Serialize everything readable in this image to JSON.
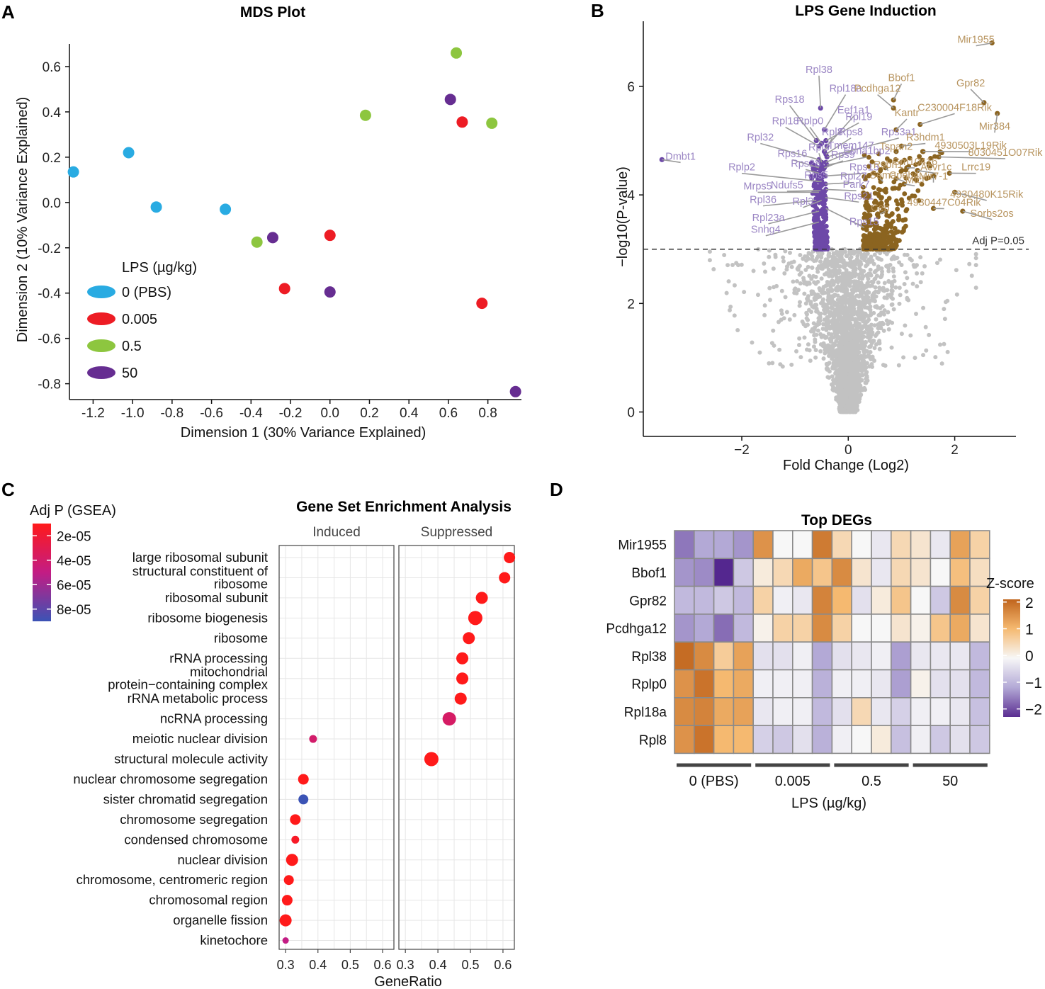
{
  "figure": {
    "panel_letters": [
      "A",
      "B",
      "C",
      "D"
    ],
    "colors": {
      "pbs": "#29abe2",
      "d0005": "#ed1c24",
      "d05": "#8dc63f",
      "d50": "#662d91",
      "purple": "#6d48a8",
      "gold": "#8b6420",
      "grey": "#c2c2c2"
    }
  },
  "chart_data": [
    {
      "id": "mds",
      "type": "scatter",
      "title": "MDS Plot",
      "xlabel": "Dimension 1 (30% Variance Explained)",
      "ylabel": "Dimension 2 (10% Variance Explained)",
      "xlim": [
        -1.32,
        0.97
      ],
      "ylim": [
        -0.87,
        0.7
      ],
      "xticks": [
        "-1.2",
        "-1.0",
        "-0.8",
        "-0.6",
        "-0.4",
        "-0.2",
        "0.0",
        "0.2",
        "0.4",
        "0.6",
        "0.8"
      ],
      "xtick_values": [
        -1.2,
        -1.0,
        -0.8,
        -0.6,
        -0.4,
        -0.2,
        0.0,
        0.2,
        0.4,
        0.6,
        0.8
      ],
      "yticks": [
        "0.6",
        "0.4",
        "0.2",
        "0.0",
        "-0.2",
        "-0.4",
        "-0.6",
        "-0.8"
      ],
      "ytick_values": [
        0.6,
        0.4,
        0.2,
        0.0,
        -0.2,
        -0.4,
        -0.6,
        -0.8
      ],
      "legend_title": "LPS (µg/kg)",
      "series": [
        {
          "name": "0 (PBS)",
          "color": "#29abe2",
          "points": [
            [
              -1.3,
              0.135
            ],
            [
              -1.02,
              0.22
            ],
            [
              -0.88,
              -0.02
            ],
            [
              -0.53,
              -0.03
            ]
          ]
        },
        {
          "name": "0.005",
          "color": "#ed1c24",
          "points": [
            [
              0.67,
              0.355
            ],
            [
              0.0,
              -0.145
            ],
            [
              -0.23,
              -0.38
            ],
            [
              0.77,
              -0.445
            ]
          ]
        },
        {
          "name": "0.5",
          "color": "#8dc63f",
          "points": [
            [
              0.64,
              0.66
            ],
            [
              0.18,
              0.385
            ],
            [
              0.82,
              0.35
            ],
            [
              -0.37,
              -0.175
            ]
          ]
        },
        {
          "name": "50",
          "color": "#662d91",
          "points": [
            [
              0.61,
              0.455
            ],
            [
              -0.29,
              -0.155
            ],
            [
              0.0,
              -0.395
            ],
            [
              0.94,
              -0.835
            ]
          ]
        }
      ]
    },
    {
      "id": "volcano",
      "type": "scatter",
      "title": "LPS Gene Induction",
      "xlabel": "Fold Change (Log2)",
      "ylabel": "−log10(P-value)",
      "xlim": [
        -3.85,
        3.15
      ],
      "ylim": [
        -0.45,
        7.2
      ],
      "xticks": [
        "−2",
        "0",
        "2"
      ],
      "xtick_values": [
        -2,
        0,
        2
      ],
      "yticks": [
        "0",
        "2",
        "4",
        "6"
      ],
      "ytick_values": [
        0,
        2,
        4,
        6
      ],
      "threshold": 3.0,
      "threshold_label": "Adj P=0.05",
      "suppressed_labels": [
        {
          "gene": "Rpl38",
          "x": -0.52,
          "y": 5.6,
          "tx": -0.55,
          "ty": 6.25
        },
        {
          "gene": "Rpl18a",
          "x": -0.45,
          "y": 5.2,
          "tx": -0.05,
          "ty": 5.9
        },
        {
          "gene": "Rps18",
          "x": -0.6,
          "y": 5.0,
          "tx": -1.1,
          "ty": 5.7
        },
        {
          "gene": "Eef1a1",
          "x": -0.4,
          "y": 4.9,
          "tx": 0.1,
          "ty": 5.5
        },
        {
          "gene": "Rpl18",
          "x": -0.55,
          "y": 4.9,
          "tx": -1.18,
          "ty": 5.3
        },
        {
          "gene": "Rplp0",
          "x": -0.5,
          "y": 4.95,
          "tx": -0.72,
          "ty": 5.3
        },
        {
          "gene": "Rpl19",
          "x": -0.42,
          "y": 5.0,
          "tx": 0.2,
          "ty": 5.38
        },
        {
          "gene": "Rpl8",
          "x": -0.45,
          "y": 4.8,
          "tx": -0.3,
          "ty": 5.1
        },
        {
          "gene": "Rps8",
          "x": -0.42,
          "y": 4.75,
          "tx": 0.05,
          "ty": 5.1
        },
        {
          "gene": "Rps3a1",
          "x": -0.4,
          "y": 4.7,
          "tx": 0.95,
          "ty": 5.1
        },
        {
          "gene": "Rpl32",
          "x": -0.55,
          "y": 4.65,
          "tx": -1.65,
          "ty": 5.0
        },
        {
          "gene": "Tmem147",
          "x": -0.42,
          "y": 4.6,
          "tx": 0.05,
          "ty": 4.85
        },
        {
          "gene": "Ebna1bp2",
          "x": -0.4,
          "y": 4.55,
          "tx": 0.35,
          "ty": 4.75
        },
        {
          "gene": "Rpl3",
          "x": -0.5,
          "y": 4.6,
          "tx": -0.55,
          "ty": 4.82
        },
        {
          "gene": "Rps16",
          "x": -0.55,
          "y": 4.5,
          "tx": -1.05,
          "ty": 4.7
        },
        {
          "gene": "Rps9",
          "x": -0.45,
          "y": 4.5,
          "tx": -0.1,
          "ty": 4.68
        },
        {
          "gene": "Rps28",
          "x": -0.55,
          "y": 4.4,
          "tx": -0.8,
          "ty": 4.52
        },
        {
          "gene": "Rps13",
          "x": -0.43,
          "y": 4.35,
          "tx": 0.3,
          "ty": 4.45
        },
        {
          "gene": "Rplp2",
          "x": -0.55,
          "y": 4.25,
          "tx": -2.0,
          "ty": 4.45
        },
        {
          "gene": "Rps5",
          "x": -0.5,
          "y": 4.25,
          "tx": -0.6,
          "ty": 4.3
        },
        {
          "gene": "Rpl27",
          "x": -0.43,
          "y": 4.2,
          "tx": 0.1,
          "ty": 4.28
        },
        {
          "gene": "Park7",
          "x": -0.42,
          "y": 4.1,
          "tx": 0.15,
          "ty": 4.13
        },
        {
          "gene": "Mrps5",
          "x": -0.55,
          "y": 4.05,
          "tx": -1.7,
          "ty": 4.1
        },
        {
          "gene": "Ndufs5",
          "x": -0.52,
          "y": 4.08,
          "tx": -1.15,
          "ty": 4.12
        },
        {
          "gene": "Rps21",
          "x": -0.43,
          "y": 3.95,
          "tx": 0.2,
          "ty": 3.92
        },
        {
          "gene": "Rpl36",
          "x": -0.6,
          "y": 3.9,
          "tx": -1.6,
          "ty": 3.85
        },
        {
          "gene": "Rpl3",
          "x": -0.5,
          "y": 3.9,
          "tx": -0.85,
          "ty": 3.82
        },
        {
          "gene": "Rps15",
          "x": -0.42,
          "y": 3.75,
          "tx": 0.3,
          "ty": 3.45
        },
        {
          "gene": "Rpl23a",
          "x": -0.55,
          "y": 3.7,
          "tx": -1.5,
          "ty": 3.52
        },
        {
          "gene": "Snhg4",
          "x": -0.55,
          "y": 3.5,
          "tx": -1.55,
          "ty": 3.3
        },
        {
          "gene": "Dmbt1",
          "x": -3.5,
          "y": 4.65,
          "tx": -3.15,
          "ty": 4.65
        }
      ],
      "induced_labels": [
        {
          "gene": "Mir1955",
          "x": 2.7,
          "y": 6.8,
          "tx": 2.4,
          "ty": 6.8
        },
        {
          "gene": "Gpr82",
          "x": 2.55,
          "y": 5.7,
          "tx": 2.3,
          "ty": 6.0
        },
        {
          "gene": "Bbof1",
          "x": 0.85,
          "y": 5.75,
          "tx": 1.0,
          "ty": 6.1
        },
        {
          "gene": "Pcdhga12",
          "x": 0.85,
          "y": 5.6,
          "tx": 0.55,
          "ty": 5.9
        },
        {
          "gene": "C230004F18Rik",
          "x": 1.35,
          "y": 5.3,
          "tx": 2.0,
          "ty": 5.55
        },
        {
          "gene": "Mir384",
          "x": 2.8,
          "y": 5.5,
          "tx": 2.75,
          "ty": 5.2
        },
        {
          "gene": "Kantr",
          "x": 0.9,
          "y": 5.2,
          "tx": 1.1,
          "ty": 5.45
        },
        {
          "gene": "R3hdm1",
          "x": 1.0,
          "y": 4.9,
          "tx": 1.45,
          "ty": 5.0
        },
        {
          "gene": "Tspan2",
          "x": 0.9,
          "y": 4.8,
          "tx": 0.9,
          "ty": 4.83
        },
        {
          "gene": "4930503L19Rik",
          "x": 1.4,
          "y": 4.8,
          "tx": 2.3,
          "ty": 4.85
        },
        {
          "gene": "8030451O07Rik",
          "x": 1.7,
          "y": 4.7,
          "tx": 2.95,
          "ty": 4.72
        },
        {
          "gene": "Rsbn1",
          "x": 0.7,
          "y": 4.5,
          "tx": 0.75,
          "ty": 4.5
        },
        {
          "gene": "Gm10416",
          "x": 1.1,
          "y": 4.5,
          "tx": 1.25,
          "ty": 4.55
        },
        {
          "gene": "Acvr1c",
          "x": 1.3,
          "y": 4.45,
          "tx": 1.65,
          "ty": 4.45
        },
        {
          "gene": "Lrrc19",
          "x": 1.9,
          "y": 4.4,
          "tx": 2.4,
          "ty": 4.45
        },
        {
          "gene": "Sema",
          "x": 0.6,
          "y": 4.3,
          "tx": 0.65,
          "ty": 4.3
        },
        {
          "gene": "Cpeb4",
          "x": 0.9,
          "y": 4.3,
          "tx": 1.05,
          "ty": 4.3
        },
        {
          "gene": "Mtcl",
          "x": 1.05,
          "y": 4.2,
          "tx": 1.25,
          "ty": 4.22
        },
        {
          "gene": "Mir7-1",
          "x": 1.6,
          "y": 4.35,
          "tx": 1.6,
          "ty": 4.28
        },
        {
          "gene": "4930480K15Rik",
          "x": 2.0,
          "y": 4.05,
          "tx": 2.6,
          "ty": 3.95
        },
        {
          "gene": "4930447C04Rik",
          "x": 1.6,
          "y": 3.75,
          "tx": 1.8,
          "ty": 3.8
        },
        {
          "gene": "Cep",
          "x": 0.7,
          "y": 3.7,
          "tx": 0.6,
          "ty": 3.7
        },
        {
          "gene": "Sorbs2os",
          "x": 2.15,
          "y": 3.7,
          "tx": 2.7,
          "ty": 3.6
        }
      ]
    },
    {
      "id": "gsea",
      "type": "scatter",
      "title": "Gene Set Enrichment Analysis",
      "xlabel": "GeneRatio",
      "facets": [
        "Induced",
        "Suppressed"
      ],
      "xlim": [
        0.28,
        0.635
      ],
      "xticks": [
        "0.3",
        "0.4",
        "0.5",
        "0.6"
      ],
      "xtick_values": [
        0.3,
        0.4,
        0.5,
        0.6
      ],
      "legend_title": "Adj P (GSEA)",
      "legend_ticks": [
        "2e-05",
        "4e-05",
        "6e-05",
        "8e-05"
      ],
      "legend_tick_values": [
        2e-05,
        4e-05,
        6e-05,
        8e-05
      ],
      "legend_range": [
        1e-05,
        9e-05
      ],
      "categories": [
        {
          "label": [
            "large ribosomal subunit"
          ],
          "facet": "Suppressed",
          "ratio": 0.62,
          "p": 1e-05,
          "size": 8
        },
        {
          "label": [
            "structural constituent of",
            "ribosome"
          ],
          "facet": "Suppressed",
          "ratio": 0.605,
          "p": 1e-05,
          "size": 8
        },
        {
          "label": [
            "ribosomal subunit"
          ],
          "facet": "Suppressed",
          "ratio": 0.535,
          "p": 1e-05,
          "size": 8.5
        },
        {
          "label": [
            "ribosome biogenesis"
          ],
          "facet": "Suppressed",
          "ratio": 0.515,
          "p": 1e-05,
          "size": 10
        },
        {
          "label": [
            "ribosome"
          ],
          "facet": "Suppressed",
          "ratio": 0.495,
          "p": 1e-05,
          "size": 8.5
        },
        {
          "label": [
            "rRNA processing"
          ],
          "facet": "Suppressed",
          "ratio": 0.475,
          "p": 1e-05,
          "size": 8.5
        },
        {
          "label": [
            "mitochondrial",
            "protein−containing complex"
          ],
          "facet": "Suppressed",
          "ratio": 0.475,
          "p": 1e-05,
          "size": 8.5
        },
        {
          "label": [
            "rRNA metabolic process"
          ],
          "facet": "Suppressed",
          "ratio": 0.47,
          "p": 1e-05,
          "size": 8.5
        },
        {
          "label": [
            "ncRNA processing"
          ],
          "facet": "Suppressed",
          "ratio": 0.435,
          "p": 3.8e-05,
          "size": 9.5
        },
        {
          "label": [
            "meiotic nuclear division"
          ],
          "facet": "Induced",
          "ratio": 0.385,
          "p": 4e-05,
          "size": 5.5
        },
        {
          "label": [
            "structural molecule activity"
          ],
          "facet": "Suppressed",
          "ratio": 0.38,
          "p": 1e-05,
          "size": 10
        },
        {
          "label": [
            "nuclear chromosome segregation"
          ],
          "facet": "Induced",
          "ratio": 0.355,
          "p": 1e-05,
          "size": 7.5
        },
        {
          "label": [
            "sister chromatid segregation"
          ],
          "facet": "Induced",
          "ratio": 0.355,
          "p": 9e-05,
          "size": 7
        },
        {
          "label": [
            "chromosome segregation"
          ],
          "facet": "Induced",
          "ratio": 0.33,
          "p": 1e-05,
          "size": 7.5
        },
        {
          "label": [
            "condensed chromosome"
          ],
          "facet": "Induced",
          "ratio": 0.33,
          "p": 1.5e-05,
          "size": 5.5
        },
        {
          "label": [
            "nuclear division"
          ],
          "facet": "Induced",
          "ratio": 0.32,
          "p": 1e-05,
          "size": 8.5
        },
        {
          "label": [
            "chromosome, centromeric region"
          ],
          "facet": "Induced",
          "ratio": 0.31,
          "p": 1e-05,
          "size": 7
        },
        {
          "label": [
            "chromosomal region"
          ],
          "facet": "Induced",
          "ratio": 0.305,
          "p": 1e-05,
          "size": 7.5
        },
        {
          "label": [
            "organelle fission"
          ],
          "facet": "Induced",
          "ratio": 0.3,
          "p": 1e-05,
          "size": 8.5
        },
        {
          "label": [
            "kinetochore"
          ],
          "facet": "Induced",
          "ratio": 0.3,
          "p": 5e-05,
          "size": 4.5
        }
      ]
    },
    {
      "id": "heatmap",
      "type": "heatmap",
      "title": "Top DEGs",
      "xlabel": "LPS (µg/kg)",
      "legend_title": "Z-score",
      "legend_ticks": [
        "2",
        "1",
        "0",
        "−1",
        "−2"
      ],
      "legend_tick_values": [
        2,
        1,
        0,
        -1,
        -2
      ],
      "groups": [
        "0 (PBS)",
        "0.005",
        "0.5",
        "50"
      ],
      "rows": [
        "Mir1955",
        "Bbof1",
        "Gpr82",
        "Pcdhga12",
        "Rpl38",
        "Rplp0",
        "Rpl18a",
        "Rpl8"
      ],
      "values": [
        [
          -1.5,
          -1.0,
          -1.0,
          -1.2,
          1.5,
          0.0,
          0.0,
          1.8,
          0.5,
          0.0,
          -0.2,
          0.5,
          0.3,
          -0.2,
          1.3,
          0.6
        ],
        [
          -1.2,
          -1.3,
          -2.3,
          -0.6,
          0.2,
          0.5,
          1.2,
          0.8,
          1.6,
          0.3,
          -0.2,
          0.5,
          0.3,
          0.0,
          0.9,
          0.4
        ],
        [
          -0.8,
          -0.8,
          -0.6,
          -0.8,
          0.6,
          -0.1,
          -0.2,
          1.7,
          1.0,
          -0.3,
          0.2,
          0.8,
          0.0,
          -0.6,
          1.6,
          0.6
        ],
        [
          -1.2,
          -1.0,
          -1.6,
          -0.8,
          0.1,
          0.6,
          0.6,
          1.6,
          0.6,
          0.0,
          0.0,
          0.3,
          0.1,
          0.8,
          1.2,
          0.3
        ],
        [
          2.0,
          1.6,
          0.7,
          1.3,
          -0.3,
          -0.3,
          -0.1,
          -1.0,
          -0.3,
          -0.2,
          -0.1,
          -1.1,
          -0.2,
          -0.2,
          -0.2,
          -0.8
        ],
        [
          1.5,
          1.9,
          1.0,
          1.2,
          -0.1,
          -0.1,
          -0.1,
          -0.9,
          -0.1,
          -0.1,
          -0.2,
          -1.1,
          0.1,
          -0.3,
          -0.3,
          -0.8
        ],
        [
          1.6,
          1.7,
          1.2,
          1.3,
          -0.2,
          -0.1,
          -0.1,
          -0.8,
          -0.3,
          0.5,
          -0.2,
          -0.5,
          -0.1,
          -0.1,
          -0.2,
          -0.7
        ],
        [
          1.5,
          1.9,
          1.0,
          1.0,
          -0.5,
          -0.6,
          -0.3,
          -0.9,
          -0.1,
          0.0,
          0.2,
          -0.7,
          -0.1,
          -0.6,
          -0.3,
          -0.6
        ]
      ]
    }
  ]
}
